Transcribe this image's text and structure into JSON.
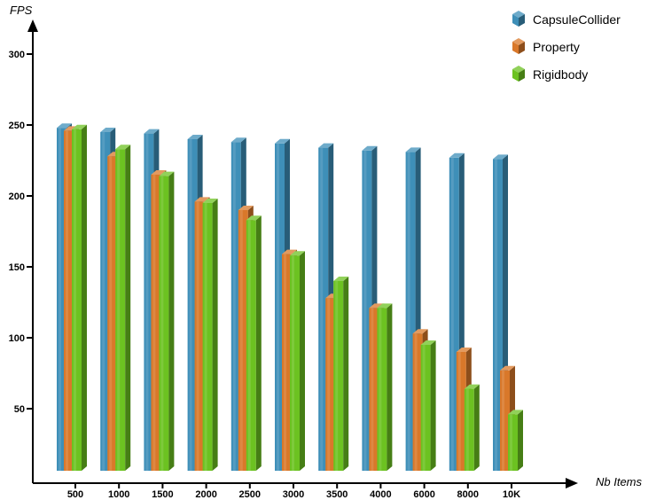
{
  "chart_data": {
    "type": "bar",
    "title": "",
    "xlabel": "Nb Items",
    "ylabel": "FPS",
    "categories": [
      "500",
      "1000",
      "1500",
      "2000",
      "2500",
      "3000",
      "3500",
      "4000",
      "6000",
      "8000",
      "10K"
    ],
    "yticks": [
      "50",
      "100",
      "150",
      "200",
      "250",
      "300"
    ],
    "ylim": [
      0,
      320
    ],
    "grid": false,
    "legend_position": "top-right",
    "series": [
      {
        "name": "CapsuleCollider",
        "color": "#3e8fb8",
        "values": [
          248,
          245,
          244,
          240,
          238,
          237,
          234,
          232,
          231,
          227,
          226
        ]
      },
      {
        "name": "Property",
        "color": "#d9782a",
        "values": [
          246,
          228,
          215,
          196,
          190,
          159,
          128,
          121,
          103,
          90,
          77
        ]
      },
      {
        "name": "Rigidbody",
        "color": "#6cc221",
        "values": [
          247,
          233,
          214,
          195,
          183,
          158,
          140,
          121,
          95,
          64,
          46
        ]
      }
    ]
  }
}
